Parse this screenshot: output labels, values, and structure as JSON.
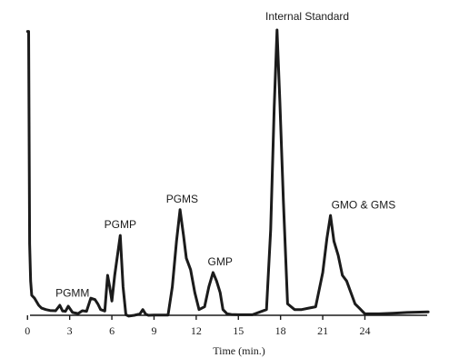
{
  "chart_data": {
    "type": "line",
    "title": "",
    "xlabel": "Time (min.)",
    "ylabel": "",
    "xlim": [
      -1,
      29
    ],
    "ylim": [
      -1.5,
      100
    ],
    "x_ticks": [
      0,
      3,
      6,
      9,
      12,
      15,
      18,
      21,
      24
    ],
    "grid": false,
    "legend": "none",
    "line_color": "#1b1b1b",
    "series": [
      {
        "x": [
          0,
          0.08,
          0.15,
          0.22,
          0.3,
          0.5,
          0.8,
          1.0,
          1.3,
          1.6,
          2.0,
          2.3,
          2.5,
          2.7,
          2.9,
          3.2,
          3.6,
          3.9,
          4.2,
          4.5,
          4.8,
          5.0,
          5.2,
          5.5,
          5.7,
          5.85,
          6.0,
          6.2,
          6.6,
          6.8,
          7.0,
          7.2,
          7.6,
          8.0,
          8.2,
          8.4,
          8.6,
          9.0,
          10.0,
          10.3,
          10.6,
          10.85,
          11.1,
          11.3,
          11.6,
          11.9,
          12.2,
          12.6,
          12.9,
          13.2,
          13.45,
          13.7,
          13.9,
          14.2,
          14.5,
          15.0,
          16.0,
          17.0,
          17.3,
          17.55,
          17.75,
          17.95,
          18.2,
          18.5,
          19.0,
          19.5,
          20.0,
          20.5,
          21.0,
          21.3,
          21.55,
          21.8,
          22.1,
          22.4,
          22.7,
          23.0,
          23.3,
          23.6,
          24.0,
          25.0,
          26.0,
          27.0,
          28.5
        ],
        "y": [
          99.5,
          99.5,
          25,
          12,
          7,
          6,
          3.5,
          2.5,
          2,
          1.7,
          1.6,
          3.5,
          1.5,
          1.4,
          3.2,
          1,
          0.6,
          1.6,
          1.4,
          6,
          5.5,
          4,
          2,
          1.5,
          14,
          10,
          5,
          14,
          28,
          10,
          0.2,
          -0.3,
          0,
          0.5,
          2,
          0.4,
          0,
          0.1,
          0.1,
          10,
          26,
          37,
          28,
          20,
          16,
          8,
          2,
          3,
          10,
          15,
          12,
          8,
          2,
          0.5,
          0.3,
          0.2,
          0.2,
          2,
          30,
          73,
          100,
          75,
          40,
          4,
          2,
          2,
          2.5,
          3,
          15,
          27,
          35,
          26,
          21,
          14,
          12,
          8,
          4,
          2.5,
          0.5,
          0.5,
          0.7,
          1.0,
          1.2
        ],
        "color": "#1b1b1b"
      }
    ],
    "annotations": [
      {
        "label": "PGMM",
        "x": 3.2,
        "y": 6.5
      },
      {
        "label": "PGMP",
        "x": 6.6,
        "y": 30.5
      },
      {
        "label": "PGMS",
        "x": 11.0,
        "y": 39.5
      },
      {
        "label": "GMP",
        "x": 13.7,
        "y": 17.5
      },
      {
        "label": "Internal Standard",
        "x": 19.9,
        "y": 103.5
      },
      {
        "label": "GMO & GMS",
        "x": 23.9,
        "y": 37.5
      }
    ]
  }
}
